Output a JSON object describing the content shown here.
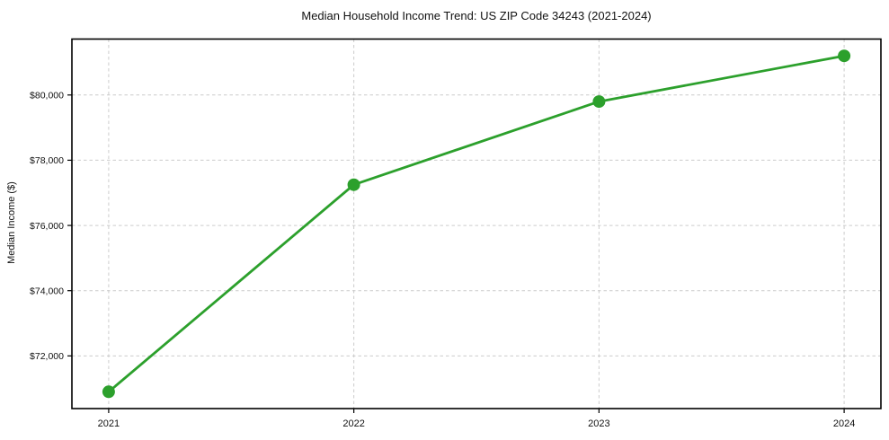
{
  "chart_data": {
    "type": "line",
    "title": "Median Household Income Trend: US ZIP Code 34243 (2021-2024)",
    "xlabel": "",
    "ylabel": "Median Income ($)",
    "x": [
      2021,
      2022,
      2023,
      2024
    ],
    "series": [
      {
        "name": "Median Household Income",
        "values": [
          70900,
          77250,
          79800,
          81200
        ],
        "color": "#2ca02c",
        "marker": "circle",
        "line_width": 2.8,
        "marker_radius": 7
      }
    ],
    "x_ticks": [
      {
        "value": 2021,
        "label": "2021"
      },
      {
        "value": 2022,
        "label": "2022"
      },
      {
        "value": 2023,
        "label": "2023"
      },
      {
        "value": 2024,
        "label": "2024"
      }
    ],
    "y_ticks": [
      {
        "value": 72000,
        "label": "$72,000"
      },
      {
        "value": 74000,
        "label": "$74,000"
      },
      {
        "value": 76000,
        "label": "$76,000"
      },
      {
        "value": 78000,
        "label": "$78,000"
      },
      {
        "value": 80000,
        "label": "$80,000"
      }
    ],
    "xlim": [
      2020.85,
      2024.15
    ],
    "ylim": [
      70385,
      81715
    ],
    "grid": "both-dashed",
    "legend": "none",
    "colors": {
      "line": "#2ca02c",
      "grid": "#cccccc",
      "axis": "#000000",
      "text": "#111111",
      "background": "#ffffff"
    }
  }
}
